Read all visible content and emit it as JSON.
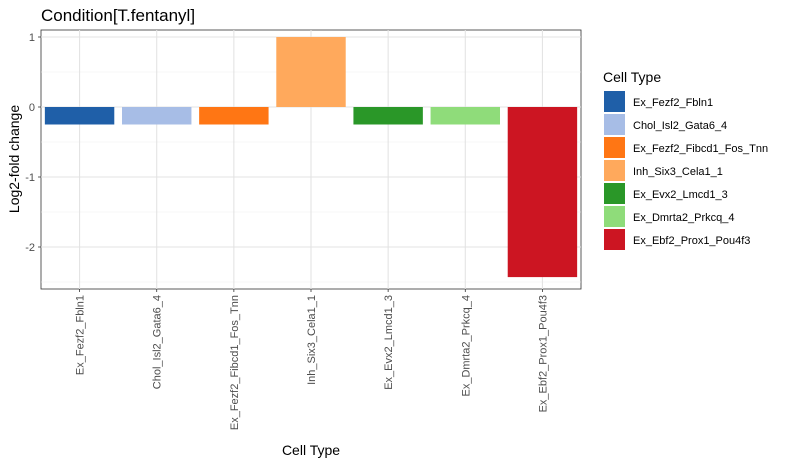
{
  "chart_data": {
    "type": "bar",
    "title": "Condition[T.fentanyl]",
    "xlabel": "Cell Type",
    "ylabel": "Log2-fold change",
    "ylim": [
      -2.6,
      1.1
    ],
    "y_ticks": [
      -2,
      -1,
      0,
      1
    ],
    "y_tick_labels": [
      "-2",
      "-1",
      "0",
      "1"
    ],
    "grid": true,
    "legend_placement": "right",
    "categories": [
      "Ex_Fezf2_Fbln1",
      "Chol_Isl2_Gata6_4",
      "Ex_Fezf2_Fibcd1_Fos_Tnn",
      "Inh_Six3_Cela1_1",
      "Ex_Evx2_Lmcd1_3",
      "Ex_Dmrta2_Prkcq_4",
      "Ex_Ebf2_Prox1_Pou4f3"
    ],
    "values": [
      -0.25,
      -0.25,
      -0.25,
      1.0,
      -0.25,
      -0.25,
      -2.43
    ],
    "colors": [
      "#1f5fa8",
      "#a7bde6",
      "#ff7614",
      "#ffa95c",
      "#2a9728",
      "#8fdc7a",
      "#cc1522"
    ],
    "legend": {
      "title": "Cell Type",
      "items": [
        "Ex_Fezf2_Fbln1",
        "Chol_Isl2_Gata6_4",
        "Ex_Fezf2_Fibcd1_Fos_Tnn",
        "Inh_Six3_Cela1_1",
        "Ex_Evx2_Lmcd1_3",
        "Ex_Dmrta2_Prkcq_4",
        "Ex_Ebf2_Prox1_Pou4f3"
      ]
    }
  }
}
